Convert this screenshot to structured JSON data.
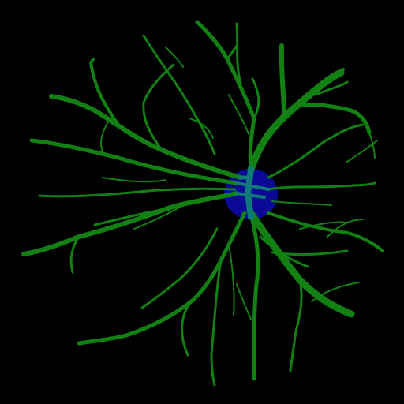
{
  "image": {
    "kind": "retinal vessel segmentation mask",
    "colors": {
      "background": "#000000",
      "vessels": "#128012",
      "optic_disc": "#0A0A96",
      "overlap": "#0F7A78"
    }
  }
}
